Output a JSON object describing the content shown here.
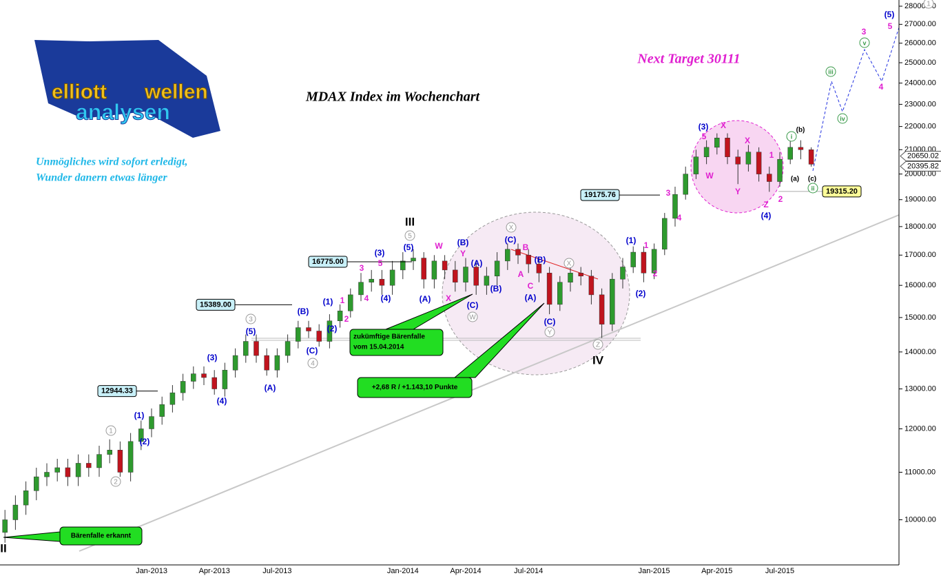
{
  "chart_data": {
    "type": "candlestick",
    "title": "MDAX Index im Wochenchart",
    "target": "Next Target 30111",
    "motto": [
      "Unmögliches wird sofort erledigt,",
      "Wunder danern etwas länger"
    ],
    "logo": [
      "elliott",
      "wellen",
      "analysen"
    ],
    "log_scale": true,
    "up_color": "#2e9a2e",
    "down_color": "#c0141e",
    "categories": [
      null,
      null,
      null,
      null,
      null,
      null,
      null,
      null,
      null,
      null,
      null,
      null,
      null,
      null,
      "Jan-2013",
      null,
      null,
      null,
      null,
      null,
      "Apr-2013",
      null,
      null,
      null,
      null,
      null,
      "Jul-2013",
      null,
      null,
      null,
      null,
      null,
      null,
      null,
      null,
      null,
      null,
      null,
      "Jan-2014",
      null,
      null,
      null,
      null,
      null,
      "Apr-2014",
      null,
      null,
      null,
      null,
      null,
      "Jul-2014",
      null,
      null,
      null,
      null,
      null,
      null,
      null,
      null,
      null,
      null,
      null,
      "Jan-2015",
      null,
      null,
      null,
      null,
      null,
      "Apr-2015",
      null,
      null,
      null,
      null,
      null,
      "Jul-2015",
      null,
      null,
      null
    ],
    "open": [
      9750,
      10000,
      10300,
      10600,
      10900,
      11000,
      11100,
      10900,
      11200,
      11100,
      11400,
      11500,
      11000,
      11700,
      12000,
      12300,
      12600,
      12900,
      13200,
      13400,
      13300,
      13000,
      13500,
      13900,
      14300,
      13900,
      13500,
      13900,
      14300,
      14700,
      14600,
      14300,
      14900,
      15200,
      15700,
      16100,
      16200,
      16000,
      16500,
      16800,
      16900,
      16200,
      16800,
      16500,
      16100,
      16600,
      16000,
      16300,
      16800,
      17200,
      17000,
      16700,
      16400,
      15400,
      16100,
      16400,
      16300,
      15700,
      14800,
      16200,
      16600,
      17100,
      16400,
      17200,
      18300,
      19200,
      20000,
      20700,
      21100,
      21500,
      20700,
      20400,
      20900,
      20000,
      19700,
      20600,
      21100,
      21000
    ],
    "high": [
      10200,
      10500,
      10800,
      11100,
      11200,
      11300,
      11300,
      11400,
      11400,
      11600,
      11750,
      11700,
      11900,
      12200,
      12500,
      12800,
      13100,
      13400,
      13600,
      13600,
      13500,
      13700,
      14100,
      14500,
      14500,
      14100,
      14100,
      14500,
      14900,
      14900,
      14800,
      15100,
      15400,
      15900,
      16400,
      16500,
      16500,
      16800,
      17100,
      17200,
      17100,
      17000,
      17000,
      16800,
      16900,
      16800,
      16600,
      17100,
      17400,
      17400,
      17200,
      16900,
      16600,
      16300,
      16600,
      16600,
      16500,
      15900,
      16400,
      16900,
      17300,
      17300,
      17400,
      18500,
      19500,
      20300,
      21000,
      21400,
      21700,
      21700,
      21000,
      21200,
      21100,
      20300,
      20900,
      21500,
      21400,
      21100
    ],
    "low": [
      9550,
      9800,
      10100,
      10400,
      10700,
      10800,
      10700,
      10700,
      10900,
      10900,
      11200,
      10900,
      10800,
      11500,
      11800,
      12100,
      12400,
      12700,
      13000,
      13100,
      12850,
      12800,
      13300,
      13700,
      13700,
      13350,
      13300,
      13700,
      14100,
      14400,
      14150,
      14100,
      14700,
      15000,
      15500,
      15800,
      15700,
      15700,
      16200,
      16500,
      15900,
      15900,
      16200,
      15800,
      15800,
      15700,
      15700,
      16000,
      16500,
      16700,
      16400,
      16100,
      15100,
      15200,
      15800,
      16000,
      15400,
      14400,
      14600,
      15900,
      16400,
      16100,
      16200,
      17000,
      18000,
      19000,
      19800,
      20400,
      20800,
      20400,
      19600,
      20100,
      19700,
      19300,
      19500,
      20400,
      20600,
      20300
    ],
    "close": [
      10000,
      10300,
      10600,
      10900,
      11000,
      11100,
      10900,
      11200,
      11100,
      11400,
      11500,
      11000,
      11700,
      12000,
      12300,
      12600,
      12900,
      13200,
      13400,
      13300,
      13000,
      13500,
      13900,
      14300,
      13900,
      13500,
      13900,
      14300,
      14700,
      14600,
      14300,
      14900,
      15200,
      15700,
      16100,
      16200,
      16000,
      16500,
      16800,
      16900,
      16200,
      16800,
      16500,
      16100,
      16600,
      16000,
      16300,
      16800,
      17200,
      17000,
      16700,
      16400,
      15400,
      16100,
      16400,
      16300,
      15700,
      14800,
      16200,
      16600,
      17100,
      16400,
      17200,
      18300,
      19200,
      20000,
      20700,
      21100,
      21500,
      20700,
      20400,
      20900,
      20000,
      19700,
      20600,
      21100,
      21000,
      20396
    ],
    "ylim": [
      9135,
      28350
    ],
    "yticks": [
      {
        "value": 10000,
        "label": "10000.00"
      },
      {
        "value": 11000,
        "label": "11000.00"
      },
      {
        "value": 12000,
        "label": "12000.00"
      },
      {
        "value": 13000,
        "label": "13000.00"
      },
      {
        "value": 14000,
        "label": "14000.00"
      },
      {
        "value": 15000,
        "label": "15000.00"
      },
      {
        "value": 16000,
        "label": "16000.00"
      },
      {
        "value": 17000,
        "label": "17000.00"
      },
      {
        "value": 18000,
        "label": "18000.00"
      },
      {
        "value": 19000,
        "label": "19000.00"
      },
      {
        "value": 20000,
        "label": "20000.00"
      },
      {
        "value": 21000,
        "label": "21000.00"
      },
      {
        "value": 22000,
        "label": "22000.00"
      },
      {
        "value": 23000,
        "label": "23000.00"
      },
      {
        "value": 24000,
        "label": "24000.00"
      },
      {
        "value": 25000,
        "label": "25000.00"
      },
      {
        "value": 26000,
        "label": "26000.00"
      },
      {
        "value": 27000,
        "label": "27000.00"
      },
      {
        "value": 28000,
        "label": "28000.00"
      }
    ],
    "price_levels": [
      {
        "value": 16775,
        "label": "16775.00"
      },
      {
        "value": 15389,
        "label": "15389.00"
      },
      {
        "value": 12944.33,
        "label": "12944.33"
      },
      {
        "value": 19175.76,
        "label": "19175.76"
      },
      {
        "value": 19315.2,
        "label": "19315.20"
      }
    ],
    "axis_prices": [
      {
        "value": 20650.02,
        "label": "20650.02"
      },
      {
        "value": 20395.82,
        "label": "20395.82"
      }
    ],
    "callouts": [
      [
        "zukümftige Bärenfalle",
        "vom 15.04.2014"
      ],
      [
        "+2,68 R / +1.143,10 Punkte"
      ],
      [
        "Bärenfalle erkannt"
      ]
    ],
    "labels": [
      "(5)",
      "(3)",
      "(4)",
      "(1)",
      "(2)",
      "(C)",
      "(B)",
      "(A)",
      "(C)",
      "(B)",
      "(A)",
      "(B)",
      "(C)",
      "(A)",
      "(5)",
      "(3)",
      "(4)",
      "(1)",
      "(2)",
      "(B)",
      "(C)",
      "(5)",
      "(3)",
      "(4)",
      "(A)",
      "(1)",
      "(2)",
      "5",
      "X",
      "W",
      "Y",
      "X",
      "1",
      "Z",
      "2",
      "3",
      "4",
      "1",
      "2",
      "3",
      "5",
      "4",
      "W",
      "Y",
      "X",
      "B",
      "A",
      "C",
      "3",
      "5",
      "4",
      "1",
      "2",
      "III",
      "IV",
      "II",
      "(b)",
      "(a)",
      "(c)",
      "1",
      "5",
      "3",
      "4",
      "1",
      "2",
      "X",
      "X",
      "W",
      "Y",
      "Z",
      "i",
      "ii",
      "iii",
      "iv",
      "v"
    ]
  }
}
